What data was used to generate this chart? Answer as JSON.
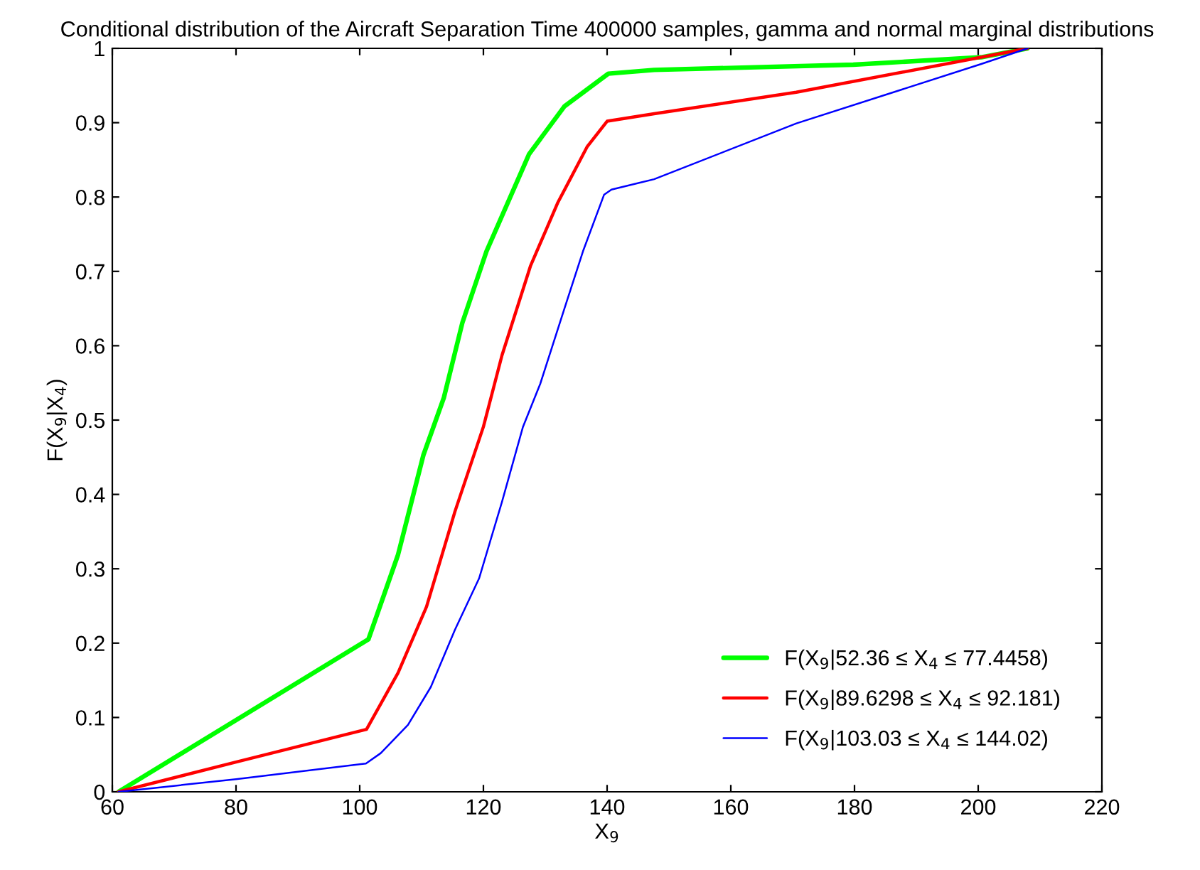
{
  "chart_data": {
    "type": "line",
    "title": "Conditional distribution of the Aircraft Separation Time 400000 samples, gamma and normal marginal distributions",
    "xlabel": "X$_{9}$",
    "ylabel": "F(X$_{9}$|X$_{4}$)",
    "xlim": [
      60,
      220
    ],
    "ylim": [
      0,
      1
    ],
    "xticks": [
      60,
      80,
      100,
      120,
      140,
      160,
      180,
      200,
      220
    ],
    "yticks": [
      0,
      0.1,
      0.2,
      0.3,
      0.4,
      0.5,
      0.6,
      0.7,
      0.8,
      0.9,
      1
    ],
    "grid": false,
    "legend": "bottom right",
    "line_style": "solid",
    "series": [
      {
        "name": "F(X$_{9}$|52.36 ≤ X$_{4}$ ≤ 77.4458)",
        "color": "#00ff00",
        "x": [
          61,
          101.4,
          106.2,
          110.3,
          113.6,
          116.6,
          120.5,
          127.4,
          133.1,
          140.2,
          147.6,
          179.8,
          200.5,
          208
        ],
        "values": [
          0,
          0.205,
          0.319,
          0.453,
          0.53,
          0.631,
          0.727,
          0.858,
          0.922,
          0.966,
          0.971,
          0.978,
          0.988,
          1
        ]
      },
      {
        "name": "F(X$_{9}$|89.6298 ≤ X$_{4}$ ≤ 92.181)",
        "color": "#ff0000",
        "x": [
          61,
          80,
          101.1,
          106.2,
          110.8,
          115.4,
          120,
          123,
          127.6,
          132,
          136.8,
          140,
          147.6,
          170.6,
          200.5,
          208
        ],
        "values": [
          0,
          0.04,
          0.084,
          0.16,
          0.249,
          0.377,
          0.491,
          0.587,
          0.707,
          0.792,
          0.868,
          0.902,
          0.912,
          0.941,
          0.988,
          1
        ]
      },
      {
        "name": "F(X$_{9}$|103.03 ≤ X$_{4}$ ≤ 144.02)",
        "color": "#0000ff",
        "x": [
          61,
          80,
          101,
          103.4,
          107.8,
          111.5,
          115.4,
          119.3,
          123,
          126.4,
          129.2,
          133.1,
          136.1,
          139.5,
          140.7,
          147.6,
          170.6,
          200.5,
          208
        ],
        "values": [
          0,
          0.017,
          0.038,
          0.052,
          0.09,
          0.141,
          0.218,
          0.287,
          0.39,
          0.491,
          0.549,
          0.65,
          0.727,
          0.803,
          0.81,
          0.824,
          0.899,
          0.979,
          1
        ]
      }
    ]
  }
}
